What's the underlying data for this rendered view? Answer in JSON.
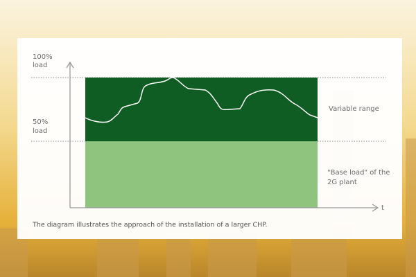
{
  "diagram": {
    "y_axis": {
      "top_label": [
        "100%",
        "load"
      ],
      "mid_label": [
        "50%",
        "load"
      ]
    },
    "x_axis_label": "t",
    "annotations": {
      "variable_range": "Variable range",
      "base_load": [
        "\"Base load\" of the",
        "2G plant"
      ]
    },
    "caption": "The diagram illustrates the approach of the installation of a larger CHP."
  }
}
